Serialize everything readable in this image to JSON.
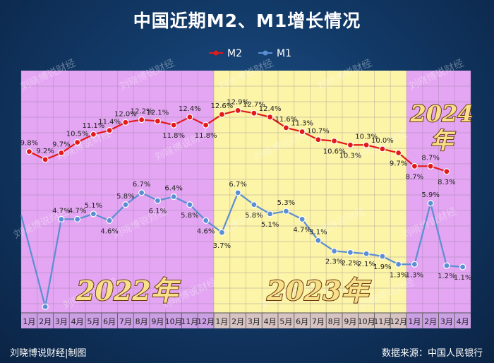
{
  "title": "中国近期M2、M1增长情况",
  "footer": {
    "left": "刘晓博说财经|制图",
    "right": "数据来源：中国人民银行"
  },
  "watermark": "刘晓博说财经",
  "colors": {
    "m2": "#e21a1a",
    "m1": "#5b8ed2",
    "purple_band": "#e4a5f2",
    "yellow_band": "#fcf4a6",
    "year_text": "#f7e08a",
    "year_stroke": "#6f3a10"
  },
  "chart_data": {
    "type": "line",
    "categories": [
      "1月",
      "2月",
      "3月",
      "4月",
      "5月",
      "6月",
      "7月",
      "8月",
      "9月",
      "10月",
      "11月",
      "12月",
      "1月",
      "2月",
      "3月",
      "4月",
      "5月",
      "6月",
      "7月",
      "8月",
      "9月",
      "10月",
      "11月",
      "12月",
      "1月",
      "2月",
      "3月",
      "4月"
    ],
    "x_groups": [
      {
        "label": "2022年",
        "from": 0,
        "to": 11
      },
      {
        "label": "2023年",
        "from": 12,
        "to": 23
      },
      {
        "label": "2024年",
        "from": 24,
        "to": 27
      }
    ],
    "ylim": [
      -3,
      15
    ],
    "legend_position": "top-center",
    "series": [
      {
        "name": "M2",
        "values": [
          9.8,
          9.2,
          9.7,
          10.5,
          11.1,
          11.4,
          12.0,
          12.2,
          12.1,
          11.8,
          12.4,
          11.8,
          12.6,
          12.9,
          12.7,
          12.4,
          11.6,
          11.3,
          10.7,
          10.6,
          10.3,
          10.3,
          10.0,
          9.7,
          8.7,
          8.7,
          8.3,
          null
        ],
        "labels": [
          "9.8%",
          "9.2%",
          "9.7%",
          "10.5%",
          "11.1%",
          "11.4%",
          "12.0%",
          "12.2%",
          "12.1%",
          "11.8%",
          "12.4%",
          "11.8%",
          "12.6%",
          "12.9%",
          "12.7%",
          "12.4%",
          "11.6%",
          "11.3%",
          "10.7%",
          "10.6%",
          "10.3%",
          "10.3%",
          "10.0%",
          "9.7%",
          "8.7%",
          "8.7%",
          "8.3%",
          ""
        ]
      },
      {
        "name": "M1",
        "values": [
          null,
          -1.9,
          4.7,
          4.7,
          5.1,
          4.6,
          5.8,
          6.7,
          6.1,
          6.4,
          5.8,
          4.6,
          3.7,
          6.7,
          5.8,
          5.1,
          5.3,
          4.7,
          3.1,
          2.3,
          2.2,
          2.1,
          1.9,
          1.3,
          1.3,
          5.9,
          1.2,
          1.1
        ],
        "labels": [
          "",
          "",
          "4.7%",
          "4.7%",
          "5.1%",
          "4.6%",
          "5.8%",
          "6.7%",
          "6.1%",
          "6.4%",
          "5.8%",
          "4.6%",
          "3.7%",
          "6.7%",
          "5.8%",
          "5.1%",
          "5.3%",
          "4.7%",
          "3.1%",
          "2.3%",
          "2.2%",
          "2.1%",
          "1.9%",
          "1.3%",
          "1.3%",
          "5.9%",
          "1.2%",
          "1.1%"
        ]
      }
    ]
  }
}
